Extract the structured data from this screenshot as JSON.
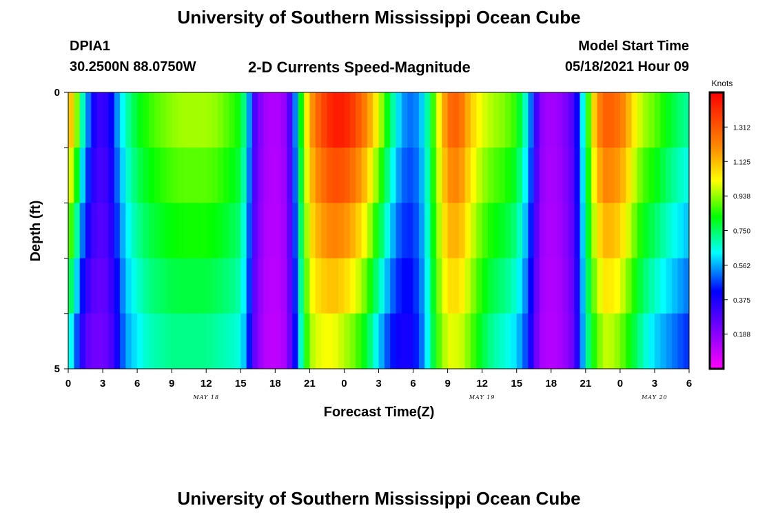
{
  "page": {
    "title_top": "University of Southern Mississippi Ocean Cube",
    "title_bottom": "University of Southern Mississippi Ocean Cube",
    "station_id": "DPIA1",
    "station_coords": "30.2500N  88.0750W",
    "plot_title": "2-D Currents Speed-Magnitude",
    "model_label": "Model Start Time",
    "model_start": "05/18/2021 Hour 09"
  },
  "chart_data": {
    "type": "heatmap",
    "title": "2-D Currents Speed-Magnitude",
    "xlabel": "Forecast Time(Z)",
    "ylabel": "Depth (ft)",
    "x_tick_labels": [
      "0",
      "3",
      "6",
      "9",
      "12",
      "15",
      "18",
      "21",
      "0",
      "3",
      "6",
      "9",
      "12",
      "15",
      "18",
      "21",
      "0",
      "3",
      "6"
    ],
    "date_labels": [
      {
        "text": "MAY 18",
        "at_hour": 12
      },
      {
        "text": "MAY 19",
        "at_hour": 36
      },
      {
        "text": "MAY 20",
        "at_hour": 51
      }
    ],
    "y_tick_labels": [
      "0",
      "5"
    ],
    "ylim": [
      0,
      5
    ],
    "xlim_hours": [
      0,
      54
    ],
    "colorbar": {
      "title": "Knots",
      "ticks": [
        "1.312",
        "1.125",
        "0.938",
        "0.750",
        "0.562",
        "0.375",
        "0.188"
      ],
      "range": [
        0,
        1.5
      ]
    },
    "depth_bands": 5,
    "speed_profile": {
      "hours": [
        0,
        0.3,
        0.7,
        1.2,
        1.8,
        2.5,
        3.5,
        4.3,
        5,
        6,
        7,
        8,
        9,
        10,
        11,
        12,
        13,
        14,
        15,
        15.6,
        16.2,
        17,
        18,
        18.7,
        19.3,
        19.8,
        20.3,
        21,
        21.8,
        22.6,
        23.4,
        24.2,
        25,
        26,
        27,
        28,
        29,
        30,
        31,
        32,
        33,
        33.6,
        34.2,
        35,
        36,
        37,
        38,
        39,
        40,
        40.5,
        41,
        41.6,
        42.3,
        43,
        44,
        44.6,
        45.3,
        46,
        46.8,
        47.6,
        48.4,
        49.2,
        50,
        51,
        52,
        53,
        54
      ],
      "surface": [
        0.9,
        1.15,
        0.95,
        0.7,
        0.5,
        0.32,
        0.35,
        0.55,
        0.68,
        0.8,
        0.86,
        0.9,
        0.93,
        0.95,
        0.95,
        0.95,
        0.93,
        0.88,
        0.82,
        0.62,
        0.3,
        0.15,
        0.12,
        0.15,
        0.3,
        0.55,
        0.85,
        1.15,
        1.3,
        1.4,
        1.45,
        1.42,
        1.35,
        1.2,
        1.0,
        0.75,
        0.55,
        0.5,
        0.62,
        0.95,
        1.25,
        1.3,
        1.25,
        1.1,
        1.0,
        0.95,
        0.92,
        0.85,
        0.62,
        0.4,
        0.2,
        0.15,
        0.15,
        0.18,
        0.3,
        0.55,
        0.9,
        1.2,
        1.3,
        1.28,
        1.2,
        1.05,
        0.95,
        0.9,
        0.82,
        0.75,
        0.7
      ],
      "bottom": [
        0.55,
        0.65,
        0.5,
        0.35,
        0.25,
        0.22,
        0.25,
        0.4,
        0.55,
        0.62,
        0.68,
        0.7,
        0.72,
        0.72,
        0.72,
        0.72,
        0.7,
        0.68,
        0.65,
        0.5,
        0.25,
        0.12,
        0.1,
        0.12,
        0.25,
        0.45,
        0.7,
        0.95,
        1.0,
        1.02,
        1.0,
        0.95,
        0.9,
        0.78,
        0.6,
        0.45,
        0.38,
        0.4,
        0.55,
        0.85,
        1.0,
        1.0,
        0.98,
        0.9,
        0.78,
        0.7,
        0.66,
        0.6,
        0.45,
        0.3,
        0.15,
        0.12,
        0.12,
        0.14,
        0.25,
        0.5,
        0.75,
        0.9,
        0.98,
        0.95,
        0.88,
        0.78,
        0.68,
        0.6,
        0.55,
        0.5,
        0.45
      ]
    }
  }
}
